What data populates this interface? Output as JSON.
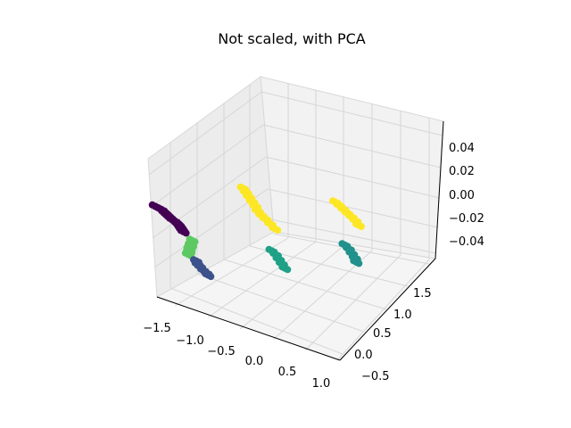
{
  "chart_data": {
    "type": "scatter",
    "projection": "3d",
    "title": "Not scaled, with PCA",
    "xlabel": "",
    "ylabel": "",
    "zlabel": "",
    "grid": true,
    "legend": "none",
    "xlim": [
      -1.7,
      1.1
    ],
    "ylim": [
      -0.7,
      1.8
    ],
    "zlim": [
      -0.05,
      0.05
    ],
    "xticks": [
      "−1.5",
      "−1.0",
      "−0.5",
      "0.0",
      "0.5",
      "1.0"
    ],
    "yticks": [
      "−0.5",
      "0.0",
      "0.5",
      "1.0",
      "1.5"
    ],
    "zticks": [
      "0.04",
      "0.02",
      "0.00",
      "−0.02",
      "−0.04"
    ],
    "series": [
      {
        "color": "#440154",
        "points": [
          [
            -1.55,
            0.72,
            0
          ],
          [
            -1.5,
            0.7,
            0
          ],
          [
            -1.45,
            0.68,
            0
          ],
          [
            -1.4,
            0.64,
            0
          ],
          [
            -1.36,
            0.61,
            0
          ],
          [
            -1.32,
            0.58,
            0
          ],
          [
            -1.28,
            0.55,
            0
          ],
          [
            -1.24,
            0.52,
            0
          ],
          [
            -1.2,
            0.5,
            0
          ],
          [
            -1.16,
            0.47,
            0
          ],
          [
            -1.12,
            0.44,
            0
          ],
          [
            -1.08,
            0.4,
            0
          ],
          [
            -1.04,
            0.36,
            0
          ],
          [
            -1.0,
            0.32,
            0
          ]
        ]
      },
      {
        "color": "#5ec962",
        "points": [
          [
            -0.82,
            0.18,
            0
          ],
          [
            -0.78,
            0.08,
            0
          ],
          [
            -0.75,
            0.0,
            0
          ],
          [
            -0.72,
            -0.06,
            0
          ],
          [
            -0.7,
            -0.12,
            0
          ]
        ]
      },
      {
        "color": "#3b528b",
        "points": [
          [
            -0.55,
            -0.22,
            0
          ],
          [
            -0.5,
            -0.28,
            0
          ],
          [
            -0.45,
            -0.32,
            0
          ],
          [
            -0.38,
            -0.38,
            0
          ],
          [
            -0.32,
            -0.42,
            0
          ],
          [
            -0.28,
            -0.46,
            0
          ]
        ]
      },
      {
        "color": "#fde725",
        "points": [
          [
            -0.95,
            1.45,
            0
          ],
          [
            -0.88,
            1.38,
            0
          ],
          [
            -0.8,
            1.3,
            0
          ],
          [
            -0.72,
            1.22,
            0
          ],
          [
            -0.64,
            1.14,
            0
          ],
          [
            -0.56,
            1.05,
            0
          ],
          [
            -0.48,
            0.98,
            0
          ],
          [
            -0.4,
            0.92,
            0
          ],
          [
            -0.3,
            0.84,
            0
          ],
          [
            -0.2,
            0.76,
            0
          ],
          [
            0.05,
            1.55,
            0
          ],
          [
            0.12,
            1.5,
            0
          ],
          [
            0.2,
            1.44,
            0
          ],
          [
            0.28,
            1.38,
            0
          ],
          [
            0.36,
            1.32,
            0
          ],
          [
            0.44,
            1.26,
            0
          ],
          [
            0.52,
            1.18,
            0
          ]
        ]
      },
      {
        "color": "#21918c",
        "points": [
          [
            0.62,
            0.72,
            0
          ],
          [
            0.7,
            0.66,
            0
          ],
          [
            0.78,
            0.58,
            0
          ],
          [
            0.86,
            0.5,
            0
          ],
          [
            0.92,
            0.42,
            0
          ]
        ]
      },
      {
        "color": "#1fa187",
        "points": [
          [
            0.02,
            0.3,
            0
          ],
          [
            0.1,
            0.24,
            0
          ],
          [
            0.18,
            0.16,
            0
          ],
          [
            0.26,
            0.08,
            0
          ],
          [
            0.34,
            0.0,
            0
          ]
        ]
      }
    ]
  }
}
